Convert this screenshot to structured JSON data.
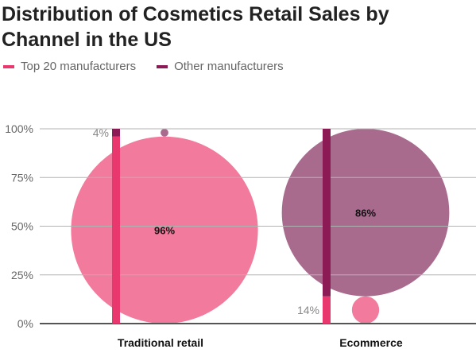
{
  "chart_data": {
    "type": "bar",
    "title": "Distribution of Cosmetics Retail Sales by Channel in the US",
    "categories": [
      "Traditional retail",
      "Ecommerce"
    ],
    "series": [
      {
        "name": "Top 20 manufacturers",
        "values": [
          96,
          14
        ],
        "color": "#e8386e",
        "bubble_color": "#f27a9c"
      },
      {
        "name": "Other manufacturers",
        "values": [
          4,
          86
        ],
        "color": "#8c1a54",
        "bubble_color": "#a86b8e"
      }
    ],
    "stacked": true,
    "y_ticks": [
      "0%",
      "25%",
      "50%",
      "75%",
      "100%"
    ],
    "ylim": [
      0,
      100
    ],
    "data_labels": {
      "Traditional retail": {
        "Top 20 manufacturers": "96%",
        "Other manufacturers": "4%"
      },
      "Ecommerce": {
        "Top 20 manufacturers": "14%",
        "Other manufacturers": "86%"
      }
    },
    "grid": true,
    "legend_position": "top-left"
  }
}
